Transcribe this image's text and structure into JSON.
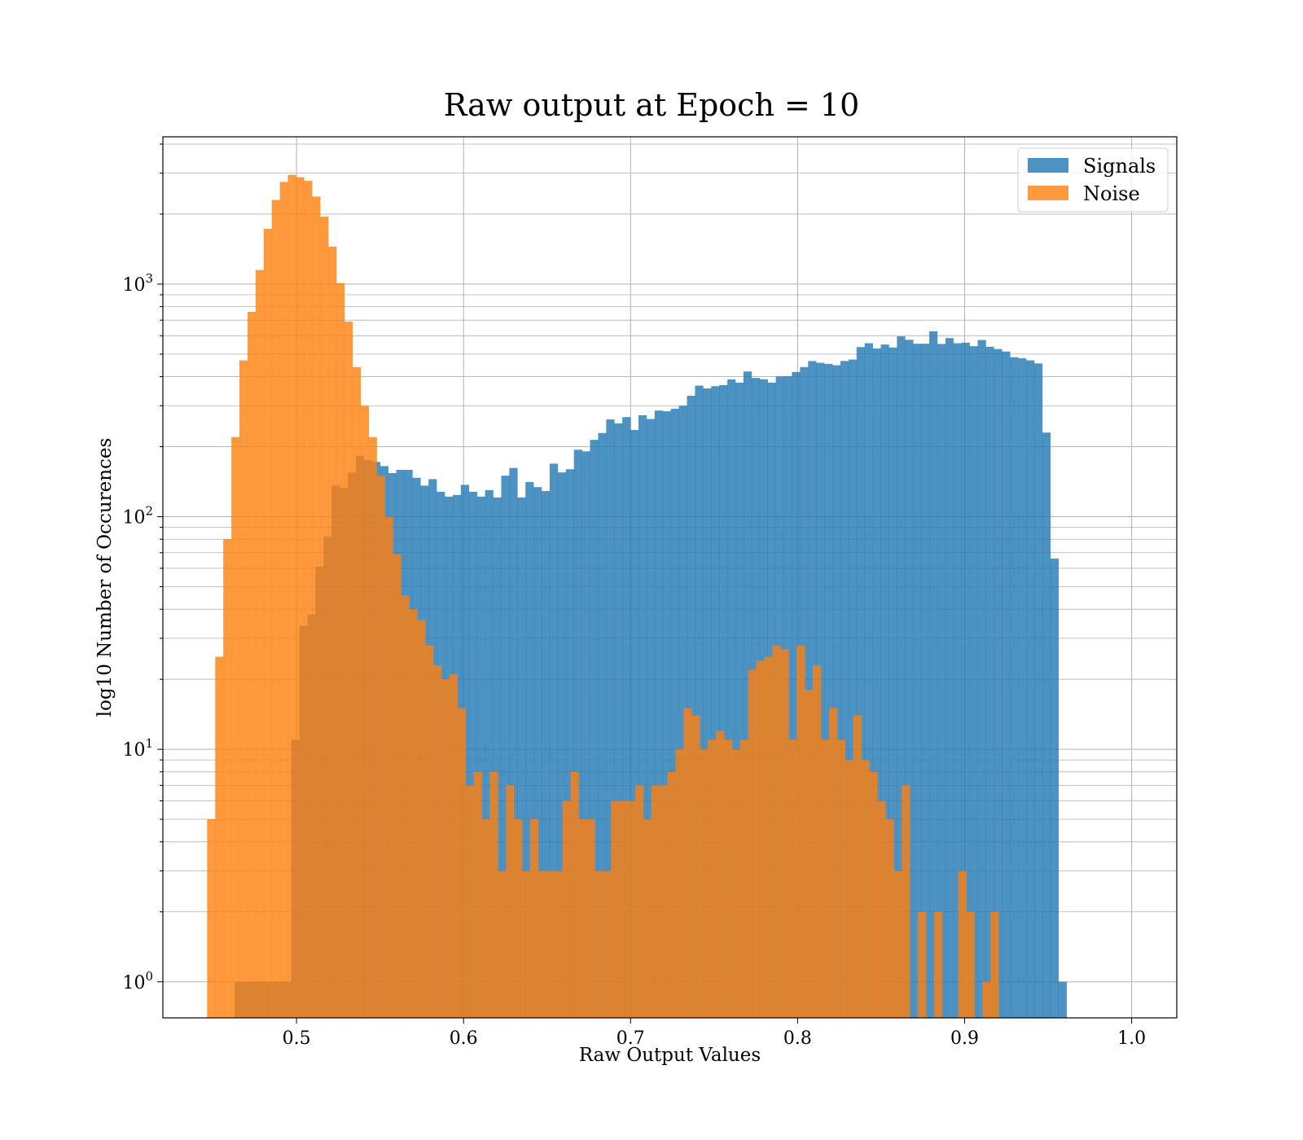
{
  "chart_data": {
    "type": "histogram",
    "title": "Raw output at Epoch = 10",
    "xlabel": "Raw Output Values",
    "ylabel": "log10 Number of Occurences",
    "xlim": [
      0.42,
      1.027
    ],
    "ylim": [
      0.7,
      4300
    ],
    "yscale": "log",
    "grid": true,
    "legend": {
      "position": "top-right",
      "entries": [
        "Signals",
        "Noise"
      ]
    },
    "x_ticks": [
      {
        "value": 0.5,
        "label": "0.5"
      },
      {
        "value": 0.6,
        "label": "0.6"
      },
      {
        "value": 0.7,
        "label": "0.7"
      },
      {
        "value": 0.8,
        "label": "0.8"
      },
      {
        "value": 0.9,
        "label": "0.9"
      },
      {
        "value": 1.0,
        "label": "1.0"
      }
    ],
    "y_ticks": [
      {
        "value": 1,
        "base": "10",
        "exp": "0"
      },
      {
        "value": 10,
        "base": "10",
        "exp": "1"
      },
      {
        "value": 100,
        "base": "10",
        "exp": "2"
      },
      {
        "value": 1000,
        "base": "10",
        "exp": "3"
      }
    ],
    "series": [
      {
        "name": "Signals",
        "color": "#1f77b4",
        "opacity": 0.8,
        "x_start": 0.463,
        "bin_width": 0.004835,
        "values": [
          1,
          1,
          1,
          1,
          1,
          1,
          1,
          11,
          34,
          38,
          61,
          82,
          136,
          133,
          155,
          183,
          175,
          172,
          165,
          154,
          159,
          159,
          147,
          136,
          145,
          128,
          122,
          124,
          137,
          128,
          122,
          130,
          121,
          150,
          162,
          121,
          141,
          134,
          129,
          169,
          155,
          160,
          194,
          191,
          214,
          229,
          262,
          252,
          268,
          236,
          273,
          263,
          286,
          284,
          291,
          300,
          331,
          366,
          356,
          364,
          368,
          389,
          377,
          421,
          395,
          390,
          377,
          401,
          402,
          419,
          440,
          467,
          459,
          454,
          448,
          467,
          474,
          536,
          557,
          529,
          550,
          534,
          596,
          576,
          554,
          554,
          627,
          553,
          586,
          557,
          560,
          541,
          575,
          538,
          526,
          513,
          485,
          480,
          470,
          456,
          230,
          66,
          1
        ]
      },
      {
        "name": "Noise",
        "color": "#ff7f0e",
        "opacity": 0.8,
        "x_start": 0.4465,
        "bin_width": 0.004835,
        "values": [
          5,
          25,
          80,
          220,
          470,
          760,
          1150,
          1730,
          2300,
          2750,
          2950,
          2880,
          2780,
          2380,
          1950,
          1450,
          1010,
          690,
          440,
          300,
          220,
          150,
          100,
          69,
          46,
          40,
          36,
          28,
          23,
          20,
          21,
          15,
          7,
          8,
          5,
          8,
          3,
          7,
          5,
          3,
          5,
          3,
          3,
          3,
          6,
          8,
          5,
          5,
          3,
          3,
          6,
          6,
          6,
          7,
          5,
          7,
          7,
          8,
          10,
          15,
          14,
          10,
          11,
          12,
          11,
          10,
          11,
          22,
          24,
          25,
          28,
          27,
          11,
          28,
          18,
          23,
          11,
          15,
          11,
          9,
          14,
          9,
          8,
          6,
          5,
          3,
          7,
          0,
          2,
          0,
          2,
          0,
          0,
          3,
          2,
          0,
          1,
          2
        ]
      }
    ]
  }
}
